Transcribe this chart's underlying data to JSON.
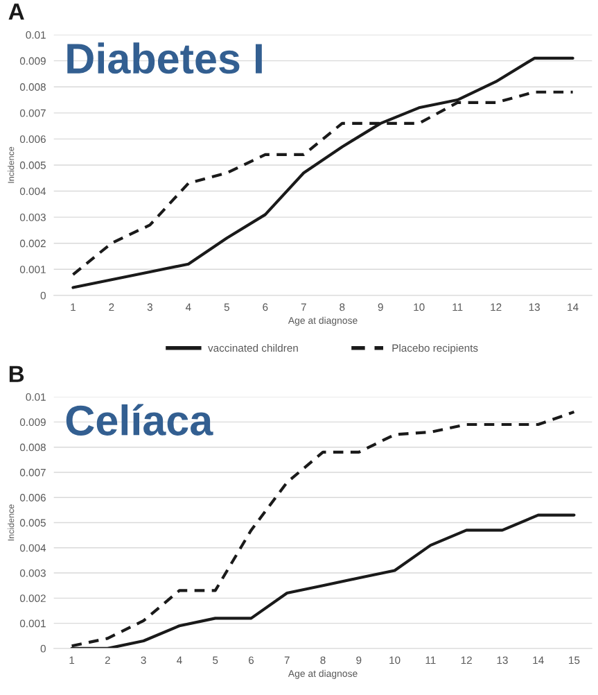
{
  "chart_data": [
    {
      "type": "line",
      "title": "A",
      "subtitle": "Diabetes I",
      "xlabel": "Age at diagnose",
      "ylabel": "Incidence",
      "categories": [
        "1",
        "2",
        "3",
        "4",
        "5",
        "6",
        "7",
        "8",
        "9",
        "10",
        "11",
        "12",
        "13",
        "14"
      ],
      "series": [
        {
          "name": "vaccinated children",
          "color": "#1a1a1a",
          "line_style": "solid",
          "values": [
            0.0003,
            0.0006,
            0.0009,
            0.0012,
            0.0022,
            0.0031,
            0.0047,
            0.0057,
            0.0066,
            0.0072,
            0.0075,
            0.0082,
            0.0091,
            0.0091
          ]
        },
        {
          "name": "Placebo recipients",
          "color": "#1a1a1a",
          "line_style": "dashed",
          "values": [
            0.0008,
            0.002,
            0.0027,
            0.0043,
            0.0047,
            0.0054,
            0.0054,
            0.0066,
            0.0066,
            0.0066,
            0.0074,
            0.0074,
            0.0078,
            0.0078
          ]
        }
      ],
      "ylim": [
        0,
        0.01
      ],
      "yticks": [
        {
          "value": 0,
          "label": "0"
        },
        0.001,
        0.002,
        0.003,
        0.004,
        0.005,
        0.006,
        0.007,
        0.008,
        0.009,
        0.01
      ],
      "grid": "y",
      "legend": "bottom",
      "marker": "none"
    },
    {
      "type": "line",
      "title": "B",
      "subtitle": "Celíaca",
      "xlabel": "Age at diagnose",
      "ylabel": "Incidence",
      "categories": [
        "1",
        "2",
        "3",
        "4",
        "5",
        "6",
        "7",
        "8",
        "9",
        "10",
        "11",
        "12",
        "13",
        "14",
        "15"
      ],
      "series": [
        {
          "color": "#1a1a1a",
          "line_style": "solid",
          "values": [
            0.0,
            0.0,
            0.0003,
            0.0009,
            0.0012,
            0.0012,
            0.0022,
            0.0025,
            0.0028,
            0.0031,
            0.0041,
            0.0047,
            0.0047,
            0.0053,
            0.0053
          ]
        },
        {
          "color": "#1a1a1a",
          "line_style": "dashed",
          "values": [
            0.0001,
            0.0004,
            0.0011,
            0.0023,
            0.0023,
            0.0047,
            0.0066,
            0.0078,
            0.0078,
            0.0085,
            0.0086,
            0.0089,
            0.0089,
            0.0089,
            0.0094
          ]
        }
      ],
      "ylim": [
        0,
        0.01
      ],
      "yticks": [
        {
          "value": 0,
          "label": "0"
        },
        0.001,
        0.002,
        0.003,
        0.004,
        0.005,
        0.006,
        0.007,
        0.008,
        0.009,
        0.01
      ],
      "grid": "y",
      "legend": false,
      "marker": "none"
    }
  ]
}
